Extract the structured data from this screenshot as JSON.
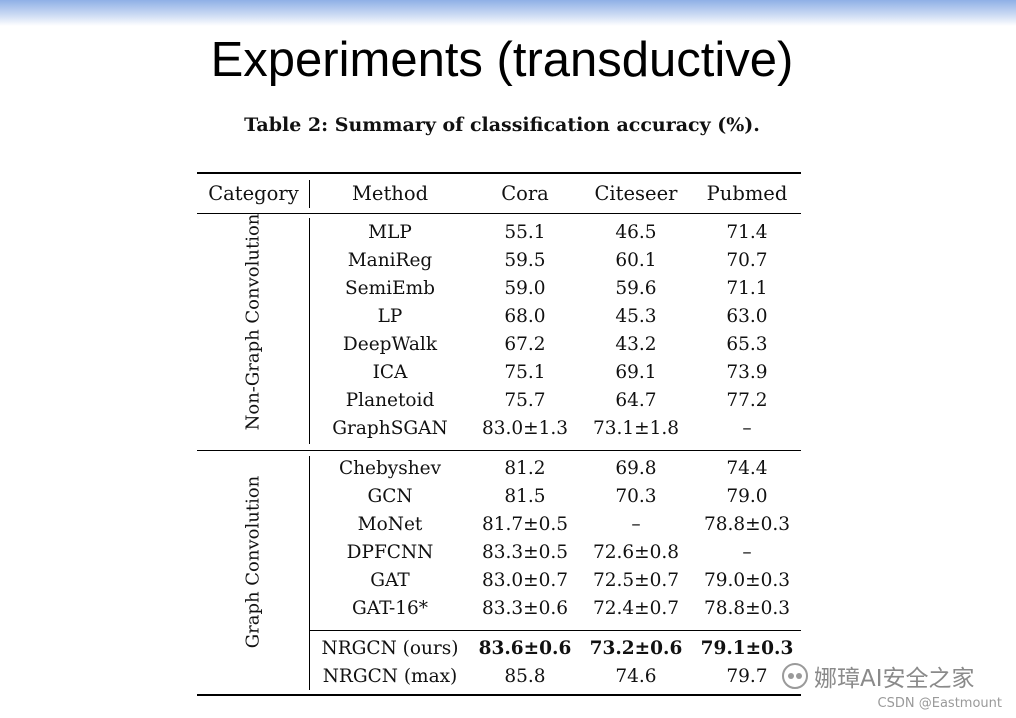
{
  "slide": {
    "title": "Experiments (transductive)"
  },
  "table": {
    "caption": "Table 2: Summary of classification accuracy (%).",
    "headers": [
      "Category",
      "Method",
      "Cora",
      "Citeseer",
      "Pubmed"
    ],
    "groups": [
      {
        "category": "Non-Graph Convolution",
        "rows": [
          [
            "MLP",
            "55.1",
            "46.5",
            "71.4"
          ],
          [
            "ManiReg",
            "59.5",
            "60.1",
            "70.7"
          ],
          [
            "SemiEmb",
            "59.0",
            "59.6",
            "71.1"
          ],
          [
            "LP",
            "68.0",
            "45.3",
            "63.0"
          ],
          [
            "DeepWalk",
            "67.2",
            "43.2",
            "65.3"
          ],
          [
            "ICA",
            "75.1",
            "69.1",
            "73.9"
          ],
          [
            "Planetoid",
            "75.7",
            "64.7",
            "77.2"
          ],
          [
            "GraphSGAN",
            "83.0±1.3",
            "73.1±1.8",
            "–"
          ]
        ]
      },
      {
        "category": "Graph Convolution",
        "rows": [
          [
            "Chebyshev",
            "81.2",
            "69.8",
            "74.4"
          ],
          [
            "GCN",
            "81.5",
            "70.3",
            "79.0"
          ],
          [
            "MoNet",
            "81.7±0.5",
            "–",
            "78.8±0.3"
          ],
          [
            "DPFCNN",
            "83.3±0.5",
            "72.6±0.8",
            "–"
          ],
          [
            "GAT",
            "83.0±0.7",
            "72.5±0.7",
            "79.0±0.3"
          ],
          [
            "GAT-16*",
            "83.3±0.6",
            "72.4±0.7",
            "78.8±0.3"
          ]
        ],
        "extra_rows": [
          [
            "NRGCN (ours)",
            "83.6±0.6",
            "73.2±0.6",
            "79.1±0.3"
          ],
          [
            "NRGCN (max)",
            "85.8",
            "74.6",
            "79.7"
          ]
        ],
        "bold_row": 0
      }
    ]
  },
  "watermark": {
    "icon": "wechat-icon",
    "text": "娜璋AI安全之家"
  },
  "credit": "CSDN @Eastmount"
}
